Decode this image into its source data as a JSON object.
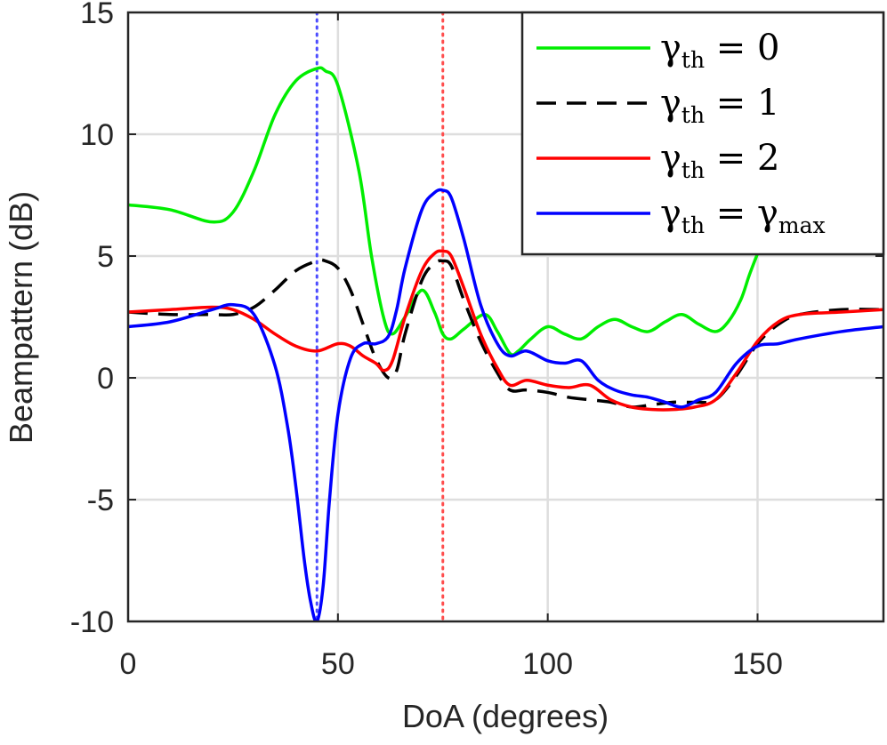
{
  "chart_data": {
    "type": "line",
    "title": "",
    "xlabel": "DoA (degrees)",
    "ylabel": "Beampattern (dB)",
    "xlim": [
      0,
      180
    ],
    "ylim": [
      -10,
      15
    ],
    "xticks": [
      0,
      50,
      100,
      150
    ],
    "yticks": [
      -10,
      -5,
      0,
      5,
      10,
      15
    ],
    "xtick_labels": [
      "0",
      "50",
      "100",
      "150"
    ],
    "ytick_labels": [
      "-10",
      "-5",
      "0",
      "5",
      "10",
      "15"
    ],
    "grid": true,
    "legend_position": "top-right",
    "vertical_markers": [
      {
        "x": 45,
        "color": "#4d4dff",
        "style": "dotted"
      },
      {
        "x": 75,
        "color": "#ff4d4d",
        "style": "dotted"
      }
    ],
    "series": [
      {
        "name": "γth = 0",
        "legend": {
          "main": "γ",
          "sub": "th",
          "rhs": " = 0",
          "rhs_sub": ""
        },
        "color": "#00ee00",
        "dash": "solid",
        "x": [
          0,
          10,
          20,
          25,
          30,
          35,
          40,
          45,
          47,
          50,
          55,
          58,
          61,
          63,
          66,
          70,
          73,
          75,
          77,
          80,
          85,
          88,
          91,
          93,
          96,
          100,
          104,
          108,
          112,
          116,
          120,
          124,
          128,
          132,
          136,
          140,
          143,
          146,
          148,
          150
        ],
        "y": [
          7.1,
          6.9,
          6.4,
          6.8,
          8.5,
          10.8,
          12.2,
          12.7,
          12.6,
          12.0,
          8.5,
          5.0,
          2.4,
          1.8,
          2.5,
          3.6,
          2.7,
          1.8,
          1.6,
          2.0,
          2.6,
          1.9,
          1.0,
          1.1,
          1.6,
          2.1,
          1.8,
          1.6,
          2.1,
          2.4,
          2.1,
          1.9,
          2.3,
          2.6,
          2.2,
          1.9,
          2.3,
          3.2,
          4.2,
          5.1
        ]
      },
      {
        "name": "γth = 1",
        "legend": {
          "main": "γ",
          "sub": "th",
          "rhs": " = 1",
          "rhs_sub": ""
        },
        "color": "#000000",
        "dash": "dashed",
        "x": [
          0,
          10,
          20,
          25,
          30,
          35,
          40,
          45,
          47,
          50,
          53,
          56,
          59,
          62,
          64,
          66,
          70,
          73,
          75,
          77,
          80,
          84,
          88,
          91,
          95,
          100,
          105,
          110,
          115,
          120,
          125,
          130,
          135,
          140,
          145,
          150,
          155,
          160,
          170,
          180
        ],
        "y": [
          2.7,
          2.6,
          2.6,
          2.6,
          2.9,
          3.6,
          4.4,
          4.8,
          4.8,
          4.5,
          3.6,
          2.2,
          0.8,
          0.0,
          0.3,
          1.8,
          4.0,
          4.7,
          4.8,
          4.6,
          3.2,
          1.5,
          0.2,
          -0.5,
          -0.5,
          -0.6,
          -0.8,
          -0.9,
          -1.0,
          -1.2,
          -1.1,
          -1.0,
          -1.0,
          -0.9,
          0.1,
          1.4,
          2.2,
          2.6,
          2.8,
          2.8
        ]
      },
      {
        "name": "γth = 2",
        "legend": {
          "main": "γ",
          "sub": "th",
          "rhs": " = 2",
          "rhs_sub": ""
        },
        "color": "#ff0000",
        "dash": "solid",
        "x": [
          0,
          10,
          20,
          25,
          30,
          35,
          40,
          45,
          50,
          53,
          56,
          59,
          61,
          63,
          66,
          70,
          73,
          75,
          77,
          80,
          84,
          88,
          91,
          95,
          100,
          105,
          110,
          115,
          120,
          125,
          130,
          135,
          140,
          145,
          150,
          155,
          160,
          170,
          180
        ],
        "y": [
          2.7,
          2.8,
          2.9,
          2.8,
          2.4,
          1.8,
          1.3,
          1.1,
          1.4,
          1.3,
          0.9,
          0.6,
          0.3,
          0.7,
          2.5,
          4.4,
          5.1,
          5.2,
          5.0,
          3.7,
          1.8,
          0.4,
          -0.3,
          -0.1,
          -0.3,
          -0.4,
          -0.3,
          -0.9,
          -1.2,
          -1.3,
          -1.3,
          -1.2,
          -0.9,
          0.2,
          1.5,
          2.3,
          2.6,
          2.7,
          2.8
        ]
      },
      {
        "name": "γth = γmax",
        "legend": {
          "main": "γ",
          "sub": "th",
          "rhs": " = γ",
          "rhs_sub": "max"
        },
        "color": "#0000ff",
        "dash": "solid",
        "x": [
          0,
          10,
          20,
          25,
          30,
          35,
          38,
          40,
          42,
          43.5,
          45,
          46.5,
          48,
          50,
          53,
          56,
          59,
          62,
          64,
          66,
          70,
          73,
          75,
          77,
          80,
          84,
          88,
          91,
          95,
          100,
          104,
          108,
          112,
          116,
          120,
          124,
          128,
          132,
          136,
          140,
          145,
          150,
          155,
          160,
          170,
          180
        ],
        "y": [
          2.1,
          2.3,
          2.8,
          3.0,
          2.6,
          0.5,
          -2.0,
          -4.5,
          -7.5,
          -9.2,
          -10.0,
          -8.5,
          -5.0,
          -1.5,
          0.8,
          1.4,
          1.4,
          1.7,
          2.8,
          4.5,
          6.9,
          7.6,
          7.7,
          7.4,
          5.7,
          3.0,
          1.4,
          0.9,
          1.1,
          0.7,
          0.6,
          0.7,
          -0.1,
          -0.5,
          -0.7,
          -0.8,
          -1.0,
          -1.2,
          -0.9,
          -0.6,
          0.6,
          1.3,
          1.4,
          1.6,
          1.9,
          2.1
        ]
      }
    ]
  }
}
